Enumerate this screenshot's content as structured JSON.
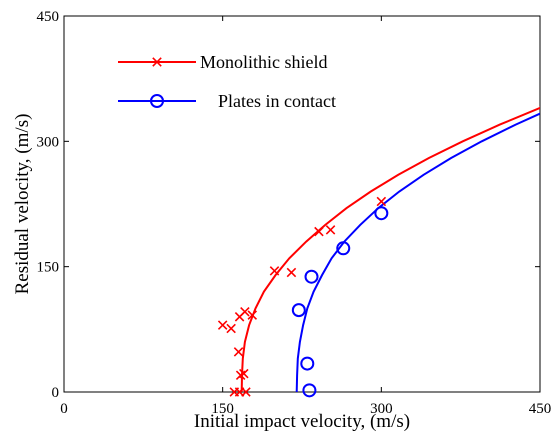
{
  "chart_data": {
    "type": "scatter",
    "title": "",
    "xlabel": "Initial impact velocity, (m/s)",
    "ylabel": "Residual velocity, (m/s)",
    "xlim": [
      0,
      450
    ],
    "ylim": [
      0,
      450
    ],
    "x_ticks": [
      0,
      150,
      300,
      450
    ],
    "y_ticks": [
      0,
      150,
      300,
      450
    ],
    "grid": false,
    "legend_position": "top-left",
    "series": [
      {
        "name": "Monolithic shield",
        "color": "#ff0000",
        "marker": "x",
        "points": [
          [
            161,
            0
          ],
          [
            166,
            0
          ],
          [
            172,
            0
          ],
          [
            167,
            20
          ],
          [
            170,
            22
          ],
          [
            165,
            48
          ],
          [
            150,
            80
          ],
          [
            158,
            76
          ],
          [
            166,
            90
          ],
          [
            171,
            96
          ],
          [
            178,
            92
          ],
          [
            199,
            145
          ],
          [
            215,
            143
          ],
          [
            241,
            192
          ],
          [
            252,
            194
          ],
          [
            300,
            228
          ]
        ],
        "curve": [
          [
            168,
            0
          ],
          [
            168.3,
            20
          ],
          [
            169,
            40
          ],
          [
            171,
            60
          ],
          [
            175,
            80
          ],
          [
            181,
            100
          ],
          [
            189,
            120
          ],
          [
            200,
            140
          ],
          [
            213,
            160
          ],
          [
            229,
            180
          ],
          [
            247,
            200
          ],
          [
            267,
            220
          ],
          [
            290,
            240
          ],
          [
            316,
            260
          ],
          [
            345,
            280
          ],
          [
            377,
            300
          ],
          [
            412,
            320
          ],
          [
            450,
            340
          ],
          [
            470,
            368
          ]
        ]
      },
      {
        "name": "Plates in contact",
        "color": "#0000ff",
        "marker": "o",
        "points": [
          [
            232,
            2
          ],
          [
            230,
            34
          ],
          [
            222,
            98
          ],
          [
            234,
            138
          ],
          [
            264,
            172
          ],
          [
            300,
            214
          ]
        ],
        "curve": [
          [
            220,
            0
          ],
          [
            220.4,
            20
          ],
          [
            221,
            40
          ],
          [
            223,
            60
          ],
          [
            226,
            80
          ],
          [
            230,
            100
          ],
          [
            236,
            120
          ],
          [
            244,
            140
          ],
          [
            253,
            160
          ],
          [
            265,
            180
          ],
          [
            280,
            200
          ],
          [
            297,
            220
          ],
          [
            317,
            240
          ],
          [
            340,
            260
          ],
          [
            366,
            280
          ],
          [
            395,
            300
          ],
          [
            427,
            320
          ],
          [
            462,
            340
          ],
          [
            470,
            350
          ]
        ]
      }
    ]
  }
}
